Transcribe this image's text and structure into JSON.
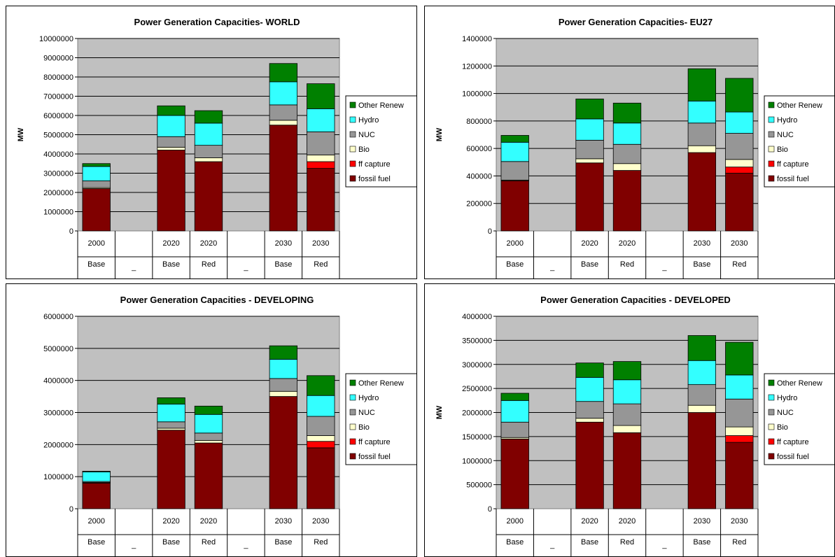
{
  "legend_order": [
    "Other Renew",
    "Hydro",
    "NUC",
    "Bio",
    "ff capture",
    "fossil fuel"
  ],
  "colors": {
    "fossil fuel": "#800000",
    "ff capture": "#ff0000",
    "Bio": "#ffffcc",
    "NUC": "#969696",
    "Hydro": "#33ffff",
    "Other Renew": "#008000",
    "plot_bg": "#c0c0c0"
  },
  "chart_data": [
    {
      "type": "bar",
      "stacked": true,
      "title": "Power Generation Capacities- WORLD",
      "ylabel": "MW",
      "ylim": [
        0,
        10000000
      ],
      "ytick_step": 1000000,
      "grid": true,
      "legend_position": "right",
      "categories": [
        [
          "2000",
          "Base"
        ],
        [
          "",
          "_"
        ],
        [
          "2020",
          "Base"
        ],
        [
          "2020",
          "Red"
        ],
        [
          "",
          "_"
        ],
        [
          "2030",
          "Base"
        ],
        [
          "2030",
          "Red"
        ]
      ],
      "series": [
        {
          "name": "fossil fuel",
          "values": [
            2200000,
            0,
            4200000,
            3600000,
            0,
            5500000,
            3250000
          ]
        },
        {
          "name": "ff capture",
          "values": [
            0,
            0,
            0,
            0,
            0,
            0,
            350000
          ]
        },
        {
          "name": "Bio",
          "values": [
            50000,
            0,
            150000,
            200000,
            0,
            250000,
            350000
          ]
        },
        {
          "name": "NUC",
          "values": [
            350000,
            0,
            550000,
            650000,
            0,
            800000,
            1200000
          ]
        },
        {
          "name": "Hydro",
          "values": [
            750000,
            0,
            1100000,
            1150000,
            0,
            1200000,
            1200000
          ]
        },
        {
          "name": "Other Renew",
          "values": [
            150000,
            0,
            500000,
            650000,
            0,
            950000,
            1300000
          ]
        }
      ]
    },
    {
      "type": "bar",
      "stacked": true,
      "title": "Power Generation Capacities- EU27",
      "ylabel": "MW",
      "ylim": [
        0,
        1400000
      ],
      "ytick_step": 200000,
      "grid": true,
      "legend_position": "right",
      "categories": [
        [
          "2000",
          "Base"
        ],
        [
          "",
          "_"
        ],
        [
          "2020",
          "Base"
        ],
        [
          "2020",
          "Red"
        ],
        [
          "",
          "_"
        ],
        [
          "2030",
          "Base"
        ],
        [
          "2030",
          "Red"
        ]
      ],
      "series": [
        {
          "name": "fossil fuel",
          "values": [
            365000,
            0,
            495000,
            440000,
            0,
            570000,
            420000
          ]
        },
        {
          "name": "ff capture",
          "values": [
            0,
            0,
            0,
            0,
            0,
            0,
            45000
          ]
        },
        {
          "name": "Bio",
          "values": [
            5000,
            0,
            30000,
            50000,
            0,
            50000,
            55000
          ]
        },
        {
          "name": "NUC",
          "values": [
            135000,
            0,
            135000,
            140000,
            0,
            165000,
            190000
          ]
        },
        {
          "name": "Hydro",
          "values": [
            140000,
            0,
            155000,
            155000,
            0,
            160000,
            155000
          ]
        },
        {
          "name": "Other Renew",
          "values": [
            50000,
            0,
            145000,
            145000,
            0,
            235000,
            245000
          ]
        }
      ]
    },
    {
      "type": "bar",
      "stacked": true,
      "title": "Power Generation Capacities - DEVELOPING",
      "ylabel": "",
      "ylim": [
        0,
        6000000
      ],
      "ytick_step": 1000000,
      "grid": true,
      "legend_position": "right",
      "categories": [
        [
          "2000",
          "Base"
        ],
        [
          "",
          "_"
        ],
        [
          "2020",
          "Base"
        ],
        [
          "2020",
          "Red"
        ],
        [
          "",
          "_"
        ],
        [
          "2030",
          "Base"
        ],
        [
          "2030",
          "Red"
        ]
      ],
      "series": [
        {
          "name": "fossil fuel",
          "values": [
            800000,
            0,
            2450000,
            2050000,
            0,
            3500000,
            1900000
          ]
        },
        {
          "name": "ff capture",
          "values": [
            0,
            0,
            0,
            0,
            0,
            0,
            200000
          ]
        },
        {
          "name": "Bio",
          "values": [
            20000,
            0,
            60000,
            80000,
            0,
            160000,
            180000
          ]
        },
        {
          "name": "NUC",
          "values": [
            30000,
            0,
            200000,
            230000,
            0,
            400000,
            600000
          ]
        },
        {
          "name": "Hydro",
          "values": [
            300000,
            0,
            550000,
            580000,
            0,
            600000,
            650000
          ]
        },
        {
          "name": "Other Renew",
          "values": [
            20000,
            0,
            200000,
            260000,
            0,
            420000,
            620000
          ]
        }
      ]
    },
    {
      "type": "bar",
      "stacked": true,
      "title": "Power Generation Capacities - DEVELOPED",
      "ylabel": "MW",
      "ylim": [
        0,
        4000000
      ],
      "ytick_step": 500000,
      "grid": true,
      "legend_position": "right",
      "categories": [
        [
          "2000",
          "Base"
        ],
        [
          "",
          "_"
        ],
        [
          "2020",
          "Base"
        ],
        [
          "2020",
          "Red"
        ],
        [
          "",
          "_"
        ],
        [
          "2030",
          "Base"
        ],
        [
          "2030",
          "Red"
        ]
      ],
      "series": [
        {
          "name": "fossil fuel",
          "values": [
            1450000,
            0,
            1800000,
            1580000,
            0,
            2000000,
            1380000
          ]
        },
        {
          "name": "ff capture",
          "values": [
            0,
            0,
            0,
            0,
            0,
            0,
            140000
          ]
        },
        {
          "name": "Bio",
          "values": [
            30000,
            0,
            80000,
            150000,
            0,
            150000,
            180000
          ]
        },
        {
          "name": "NUC",
          "values": [
            320000,
            0,
            350000,
            450000,
            0,
            430000,
            580000
          ]
        },
        {
          "name": "Hydro",
          "values": [
            450000,
            0,
            500000,
            500000,
            0,
            500000,
            500000
          ]
        },
        {
          "name": "Other Renew",
          "values": [
            150000,
            0,
            300000,
            380000,
            0,
            520000,
            680000
          ]
        }
      ]
    }
  ]
}
